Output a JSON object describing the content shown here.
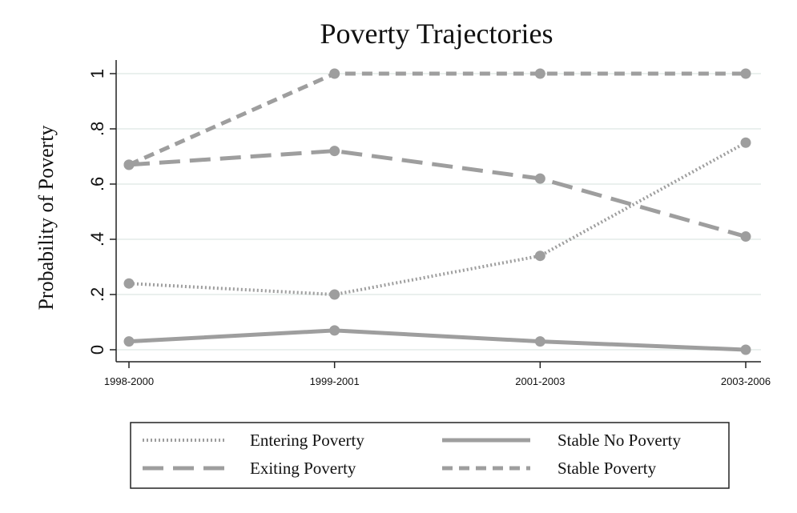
{
  "chart_data": {
    "type": "line",
    "title": "Poverty Trajectories",
    "xlabel": "",
    "ylabel": "Probability of Poverty",
    "categories": [
      "1998-2000",
      "1999-2001",
      "2001-2003",
      "2003-2006"
    ],
    "ylim": [
      0,
      1
    ],
    "yticks": [
      0,
      0.2,
      0.4,
      0.6,
      0.8,
      1
    ],
    "ytick_labels": [
      "0",
      ".2",
      ".4",
      ".6",
      ".8",
      "1"
    ],
    "grid": true,
    "legend_position": "bottom",
    "series": [
      {
        "name": "Entering Poverty",
        "style": "dotted",
        "color": "#9e9e9e",
        "values": [
          0.24,
          0.2,
          0.34,
          0.75
        ]
      },
      {
        "name": "Exiting Poverty",
        "style": "long-dash",
        "color": "#9e9e9e",
        "values": [
          0.67,
          0.72,
          0.62,
          0.41
        ]
      },
      {
        "name": "Stable No Poverty",
        "style": "solid",
        "color": "#9e9e9e",
        "values": [
          0.03,
          0.07,
          0.03,
          0.0
        ]
      },
      {
        "name": "Stable Poverty",
        "style": "short-dash",
        "color": "#9e9e9e",
        "values": [
          0.67,
          1.0,
          1.0,
          1.0
        ]
      }
    ]
  }
}
